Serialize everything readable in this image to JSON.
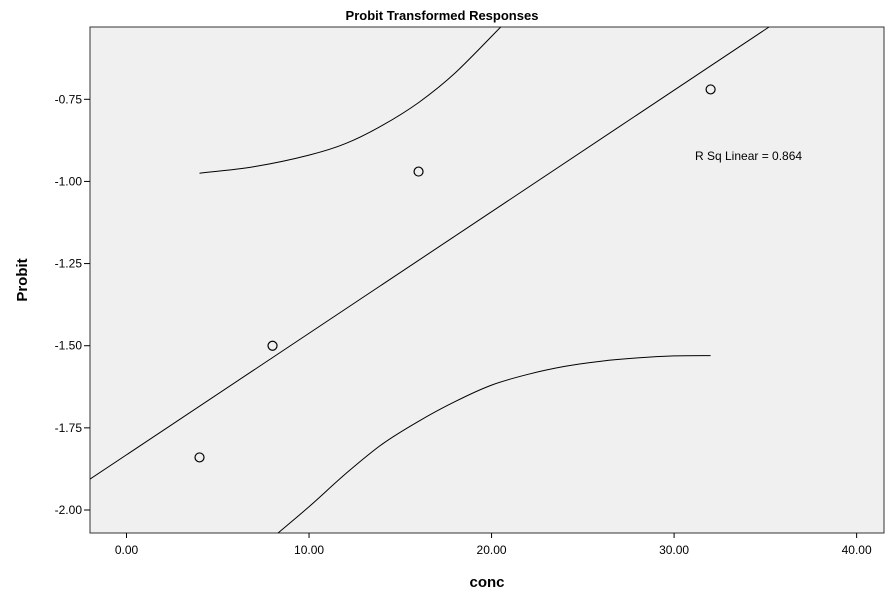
{
  "chart_data": {
    "type": "scatter",
    "title": "Probit Transformed Responses",
    "xlabel": "conc",
    "ylabel": "Probit",
    "xlim": [
      -2,
      41.5
    ],
    "ylim": [
      -2.07,
      -0.53
    ],
    "x_ticks": [
      0,
      10,
      20,
      30,
      40
    ],
    "x_tick_labels": [
      "0.00",
      "10.00",
      "20.00",
      "30.00",
      "40.00"
    ],
    "y_ticks": [
      -2.0,
      -1.75,
      -1.5,
      -1.25,
      -1.0,
      -0.75
    ],
    "y_tick_labels": [
      "-2.00",
      "-1.75",
      "-1.50",
      "-1.25",
      "-1.00",
      "-0.75"
    ],
    "grid": false,
    "background": "#f0f0f0",
    "points": [
      {
        "x": 4,
        "y": -1.84
      },
      {
        "x": 8,
        "y": -1.5
      },
      {
        "x": 16,
        "y": -0.97
      },
      {
        "x": 32,
        "y": -0.72
      }
    ],
    "fit_line": {
      "x": [
        -2,
        35.2
      ],
      "y": [
        -1.906,
        -0.53
      ]
    },
    "confidence_upper": {
      "x": [
        4,
        7,
        10,
        12,
        14,
        16,
        18,
        20.5
      ],
      "y": [
        -0.975,
        -0.955,
        -0.92,
        -0.885,
        -0.83,
        -0.76,
        -0.67,
        -0.53
      ]
    },
    "confidence_lower": {
      "x": [
        8.3,
        10,
        12,
        14,
        16,
        18,
        20,
        22,
        24,
        26,
        28,
        30,
        32
      ],
      "y": [
        -2.07,
        -1.99,
        -1.89,
        -1.8,
        -1.73,
        -1.67,
        -1.62,
        -1.587,
        -1.563,
        -1.547,
        -1.537,
        -1.531,
        -1.53
      ]
    },
    "annotation": "R Sq Linear = 0.864"
  }
}
